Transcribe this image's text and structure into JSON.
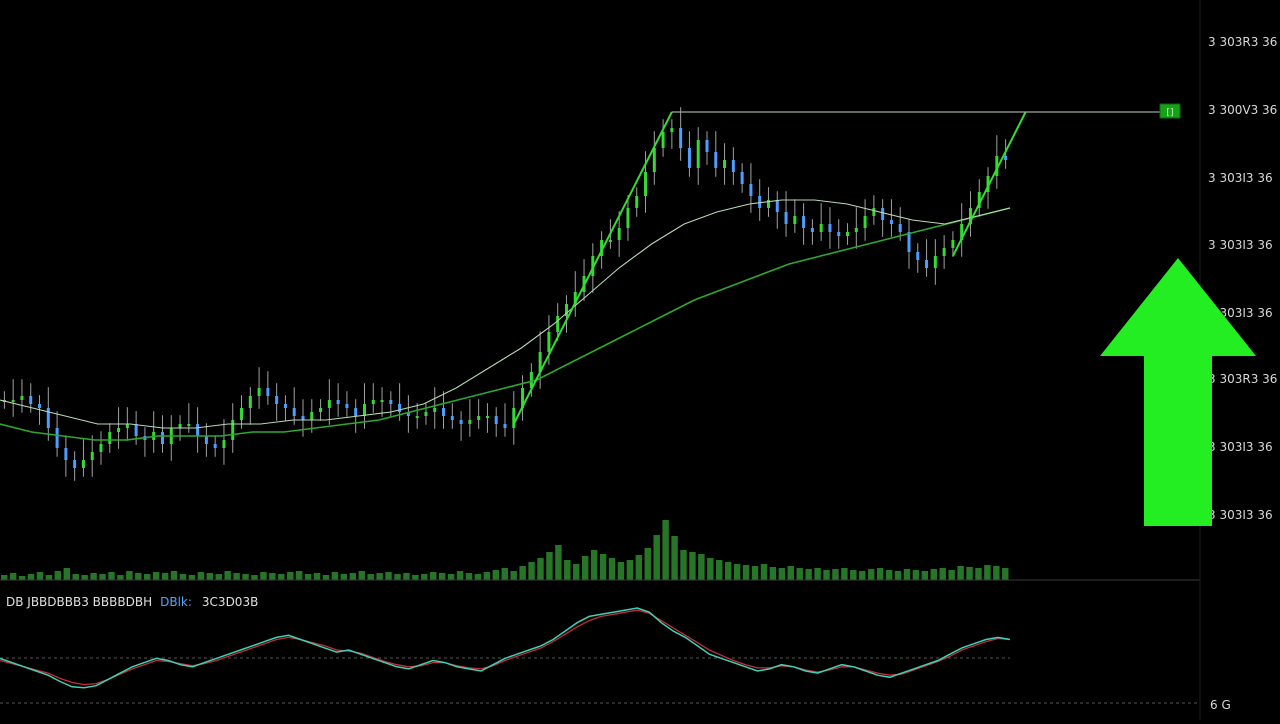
{
  "chart_data": {
    "type": "candlestick",
    "price_axis": {
      "ticks": [
        "3 303R3 36",
        "3 300V3 36",
        "3 303I3 36",
        "3 303I3 36",
        "3 303I3 36",
        "3 303R3 36",
        "3 303I3 36",
        "3 303I3 36"
      ]
    },
    "price_range": [
      0,
      100
    ],
    "indicator_label": {
      "prefix": "DB JBBDBBB3 BBBBDBH",
      "highlight": "DBlk:",
      "suffix": "3C3D03B"
    },
    "indicator_axis_label": "6 G",
    "indicator_range": [
      0,
      100
    ],
    "colors": {
      "up": "#36d936",
      "down": "#4d9fff",
      "neutral_wick": "#e6e6e6",
      "trend_line": "#33dd33",
      "ma_line": "#2ea82e",
      "ma_light": "#b8d8b8",
      "volume": "#2e8a2e",
      "indicator_main": "#40d0b8",
      "indicator_signal": "#c0303a",
      "resistance": "#9aa89a",
      "arrow": "#22ee22",
      "marker": "#14a314"
    },
    "marker_label": "[]",
    "close_series": [
      70,
      70,
      71,
      69,
      68,
      63,
      58,
      55,
      53,
      55,
      57,
      59,
      62,
      63,
      64,
      61,
      60,
      62,
      59,
      63,
      64,
      64,
      61,
      59,
      58,
      60,
      65,
      68,
      71,
      73,
      71,
      69,
      68,
      66,
      65,
      67,
      68,
      70,
      69,
      68,
      66,
      69,
      70,
      70,
      69,
      67,
      66,
      66,
      67,
      68,
      66,
      65,
      64,
      65,
      66,
      66,
      64,
      63,
      68,
      73,
      77,
      82,
      87,
      91,
      94,
      97,
      101,
      106,
      110,
      110,
      113,
      118,
      121,
      127,
      133,
      137,
      138,
      133,
      128,
      135,
      132,
      128,
      130,
      127,
      124,
      121,
      118,
      120,
      117,
      114,
      116,
      113,
      112,
      114,
      112,
      111,
      112,
      113,
      116,
      118,
      115,
      114,
      112,
      107,
      105,
      103,
      106,
      108,
      110,
      114,
      118,
      122,
      126,
      131,
      130
    ],
    "ma_long": [
      64,
      62,
      61,
      60,
      60,
      61,
      61,
      61,
      62,
      62,
      63,
      64,
      65,
      67,
      69,
      71,
      73,
      75,
      79,
      83,
      87,
      91,
      95,
      98,
      101,
      104,
      106,
      108,
      110,
      112,
      114,
      116,
      118
    ],
    "ma_short": [
      70,
      68,
      66,
      64,
      64,
      63,
      63,
      64,
      64,
      65,
      65,
      66,
      67,
      69,
      73,
      78,
      83,
      89,
      96,
      103,
      109,
      114,
      117,
      119,
      120,
      120,
      119,
      117,
      115,
      114,
      116,
      118
    ],
    "volume_series": [
      5,
      7,
      4,
      6,
      8,
      5,
      9,
      12,
      6,
      5,
      7,
      6,
      8,
      5,
      9,
      7,
      6,
      8,
      7,
      9,
      6,
      5,
      8,
      7,
      6,
      9,
      7,
      6,
      5,
      8,
      7,
      6,
      8,
      9,
      6,
      7,
      5,
      8,
      6,
      7,
      9,
      6,
      7,
      8,
      6,
      7,
      5,
      6,
      8,
      7,
      6,
      9,
      7,
      6,
      8,
      10,
      12,
      9,
      14,
      18,
      22,
      28,
      35,
      20,
      16,
      24,
      30,
      26,
      22,
      18,
      20,
      25,
      32,
      45,
      60,
      44,
      30,
      28,
      26,
      22,
      20,
      18,
      16,
      15,
      14,
      16,
      13,
      12,
      14,
      12,
      11,
      12,
      10,
      11,
      12,
      10,
      9,
      11,
      12,
      10,
      9,
      11,
      10,
      9,
      11,
      12,
      10,
      14,
      13,
      12,
      15,
      14,
      12
    ],
    "indicator_main": [
      52,
      48,
      44,
      40,
      36,
      30,
      25,
      24,
      26,
      32,
      38,
      44,
      48,
      52,
      50,
      46,
      44,
      48,
      52,
      56,
      60,
      64,
      68,
      72,
      74,
      70,
      66,
      62,
      58,
      60,
      56,
      52,
      48,
      44,
      42,
      46,
      50,
      48,
      44,
      42,
      40,
      46,
      52,
      56,
      60,
      64,
      70,
      78,
      86,
      92,
      94,
      96,
      98,
      100,
      96,
      86,
      78,
      72,
      64,
      56,
      52,
      48,
      44,
      40,
      42,
      46,
      44,
      40,
      38,
      42,
      46,
      44,
      40,
      36,
      34,
      38,
      42,
      46,
      50,
      56,
      62,
      66,
      70,
      72,
      70
    ],
    "indicator_signal": [
      50,
      47,
      44,
      41,
      38,
      33,
      29,
      27,
      28,
      32,
      37,
      42,
      46,
      50,
      49,
      47,
      45,
      47,
      50,
      54,
      58,
      62,
      66,
      70,
      72,
      70,
      67,
      64,
      60,
      59,
      57,
      53,
      49,
      46,
      44,
      45,
      48,
      48,
      45,
      43,
      42,
      45,
      50,
      54,
      58,
      62,
      68,
      75,
      82,
      88,
      92,
      94,
      96,
      98,
      95,
      88,
      81,
      74,
      67,
      60,
      55,
      50,
      46,
      43,
      43,
      45,
      44,
      41,
      39,
      41,
      44,
      44,
      41,
      38,
      36,
      37,
      41,
      45,
      49,
      54,
      60,
      64,
      68,
      71,
      70
    ]
  }
}
